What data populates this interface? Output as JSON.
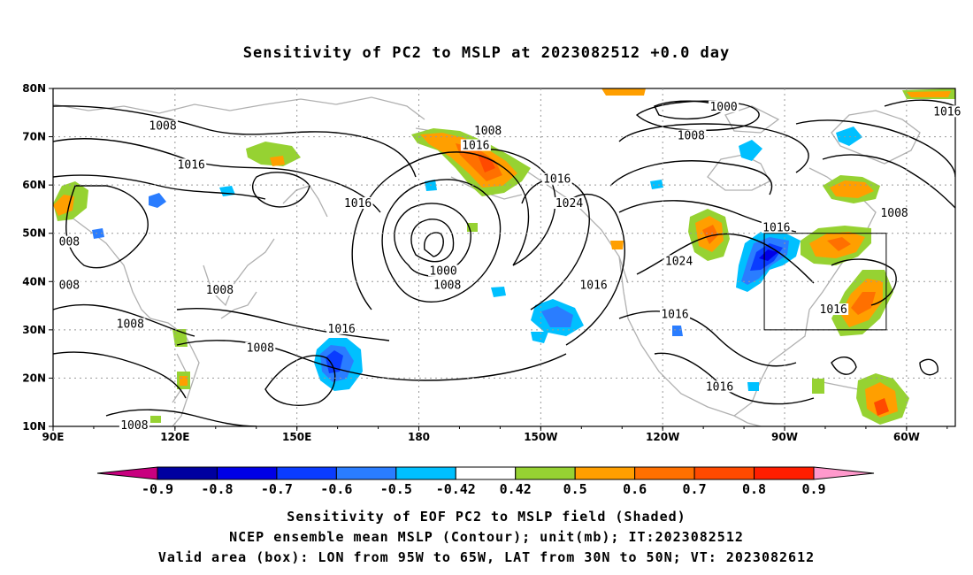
{
  "title": "Sensitivity of PC2 to MSLP at 2023082512 +0.0 day",
  "map": {
    "lat_labels": [
      "80N",
      "70N",
      "60N",
      "50N",
      "40N",
      "30N",
      "20N",
      "10N"
    ],
    "lon_labels": [
      "90E",
      "120E",
      "150E",
      "180",
      "150W",
      "120W",
      "90W",
      "60W"
    ],
    "lon_range": [
      90,
      312
    ],
    "lat_range": [
      10,
      80
    ],
    "grid": "dotted",
    "valid_box": {
      "lon": [
        265,
        295
      ],
      "lat": [
        30,
        50
      ]
    },
    "contour_labels": [
      {
        "text": "1008",
        "lon": 117,
        "lat": 72
      },
      {
        "text": "1016",
        "lon": 124,
        "lat": 64
      },
      {
        "text": "1016",
        "lon": 165,
        "lat": 56
      },
      {
        "text": "1016",
        "lon": 194,
        "lat": 68
      },
      {
        "text": "1008",
        "lon": 197,
        "lat": 71
      },
      {
        "text": "1016",
        "lon": 214,
        "lat": 61
      },
      {
        "text": "1024",
        "lon": 217,
        "lat": 56
      },
      {
        "text": "1000",
        "lon": 186,
        "lat": 42
      },
      {
        "text": "1008",
        "lon": 187,
        "lat": 39
      },
      {
        "text": "1016",
        "lon": 223,
        "lat": 39
      },
      {
        "text": "1000",
        "lon": 255,
        "lat": 76
      },
      {
        "text": "1008",
        "lon": 247,
        "lat": 70
      },
      {
        "text": "1024",
        "lon": 244,
        "lat": 44
      },
      {
        "text": "1016",
        "lon": 243,
        "lat": 33
      },
      {
        "text": "1016",
        "lon": 268,
        "lat": 51
      },
      {
        "text": "1016",
        "lon": 282,
        "lat": 34
      },
      {
        "text": "1008",
        "lon": 297,
        "lat": 54
      },
      {
        "text": "1016",
        "lon": 310,
        "lat": 75
      },
      {
        "text": "1016",
        "lon": 161,
        "lat": 30
      },
      {
        "text": "1008",
        "lon": 141,
        "lat": 26
      },
      {
        "text": "1008",
        "lon": 109,
        "lat": 31
      },
      {
        "text": "1008",
        "lon": 131,
        "lat": 38
      },
      {
        "text": "1016",
        "lon": 254,
        "lat": 18
      },
      {
        "text": "008",
        "lon": 94,
        "lat": 48
      },
      {
        "text": "008",
        "lon": 94,
        "lat": 39
      },
      {
        "text": "1008",
        "lon": 110,
        "lat": 10
      }
    ],
    "shade_colors": {
      "neg_09": "#c8007f",
      "neg_08": "#0000a0",
      "neg_07": "#0000e6",
      "neg_06": "#0a3cff",
      "neg_05": "#2a7dff",
      "neg_042": "#00c0ff",
      "pos_042": "#96d232",
      "pos_05": "#ff9f00",
      "pos_06": "#ff7000",
      "pos_07": "#ff4a00",
      "pos_08": "#ff1e00",
      "pos_09": "#ff0000"
    }
  },
  "colorbar": {
    "labels": [
      "-0.9",
      "-0.8",
      "-0.7",
      "-0.6",
      "-0.5",
      "-0.42",
      "0.42",
      "0.5",
      "0.6",
      "0.7",
      "0.8",
      "0.9"
    ],
    "colors": [
      "#0000a0",
      "#0000e6",
      "#0a3cff",
      "#2a7dff",
      "#00c0ff",
      "#ffffff",
      "#96d232",
      "#ff9f00",
      "#ff7000",
      "#ff4a00",
      "#ff1e00"
    ],
    "left_arrow_color": "#c8007f",
    "right_arrow_color": "#ff99cc"
  },
  "captions": {
    "line1": "Sensitivity of EOF PC2 to MSLP field (Shaded)",
    "line2": "NCEP ensemble mean MSLP (Contour); unit(mb); IT:2023082512",
    "line3": "Valid area (box): LON from 95W to 65W, LAT from 30N to 50N; VT: 2023082612"
  }
}
